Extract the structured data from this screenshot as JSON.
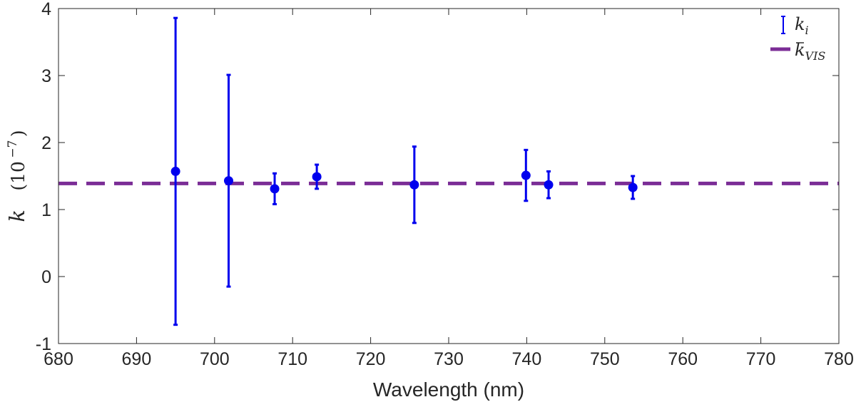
{
  "chart_data": {
    "type": "scatter",
    "xlabel": "Wavelength (nm)",
    "ylabel": {
      "symbol": "k",
      "unit_base": "(10",
      "unit_exponent": "−7",
      "unit_close": ")"
    },
    "xlim": [
      680,
      780
    ],
    "ylim": [
      -1,
      4
    ],
    "xticks": [
      680,
      690,
      700,
      710,
      720,
      730,
      740,
      750,
      760,
      770,
      780
    ],
    "yticks": [
      -1,
      0,
      1,
      2,
      3,
      4
    ],
    "xtick_labels": [
      "680",
      "690",
      "700",
      "710",
      "720",
      "730",
      "740",
      "750",
      "760",
      "770",
      "780"
    ],
    "ytick_labels": [
      "-1",
      "0",
      "1",
      "2",
      "3",
      "4"
    ],
    "grid": false,
    "legend_position": "top-right",
    "series": [
      {
        "name": "k_i",
        "legend_symbol": "k",
        "legend_subscript": "i",
        "color": "#0000ee",
        "marker": "circle",
        "points": [
          {
            "x": 695.0,
            "y": 1.57,
            "ylow": -0.72,
            "yhigh": 3.86
          },
          {
            "x": 701.8,
            "y": 1.43,
            "ylow": -0.15,
            "yhigh": 3.01
          },
          {
            "x": 707.7,
            "y": 1.31,
            "ylow": 1.08,
            "yhigh": 1.54
          },
          {
            "x": 713.1,
            "y": 1.49,
            "ylow": 1.31,
            "yhigh": 1.67
          },
          {
            "x": 725.6,
            "y": 1.37,
            "ylow": 0.8,
            "yhigh": 1.94
          },
          {
            "x": 739.9,
            "y": 1.51,
            "ylow": 1.13,
            "yhigh": 1.89
          },
          {
            "x": 742.8,
            "y": 1.37,
            "ylow": 1.17,
            "yhigh": 1.57
          },
          {
            "x": 753.6,
            "y": 1.33,
            "ylow": 1.16,
            "yhigh": 1.5
          }
        ]
      },
      {
        "name": "k_VIS",
        "legend_symbol": "k",
        "legend_subscript": "VIS",
        "color": "#7b2d96",
        "style": "dashed",
        "y": 1.39
      }
    ]
  }
}
